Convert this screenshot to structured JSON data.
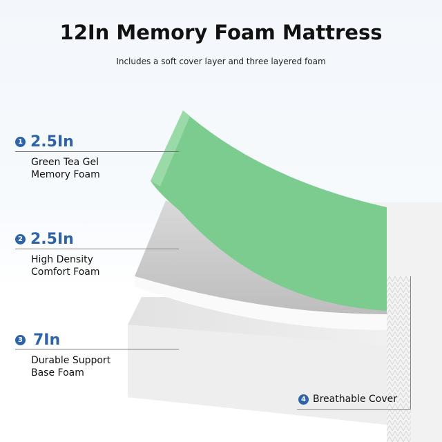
{
  "title": "12In Memory Foam Mattress",
  "subtitle": "Includes a soft cover layer and three layered foam",
  "layers": [
    {
      "number": "1",
      "size": "2.5In",
      "desc_line1": "Green Tea Gel",
      "desc_line2": "Memory Foam"
    },
    {
      "number": "2",
      "size": "2.5In",
      "desc_line1": "High Density",
      "desc_line2": "Comfort Foam"
    },
    {
      "number": "3",
      "size": "7In",
      "desc_line1": "Durable Support",
      "desc_line2": "Base Foam"
    }
  ],
  "cover": {
    "number": "4",
    "label": "Breathable Cover"
  },
  "colors": {
    "accent": "#2e63a8",
    "green_foam": "#7dcc8f",
    "white_foam": "#e6e6e6"
  }
}
